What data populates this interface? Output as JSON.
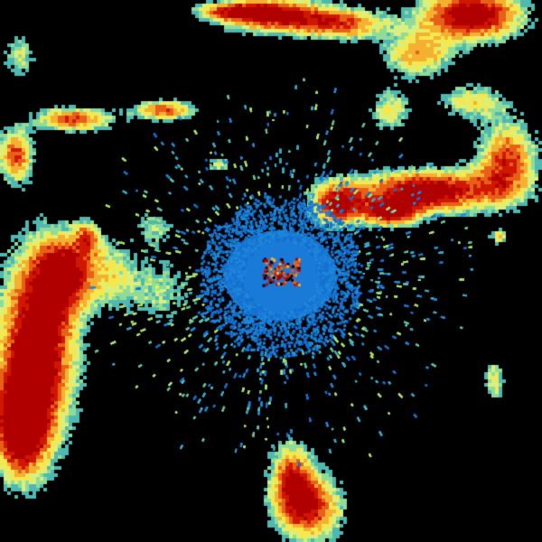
{
  "radar": {
    "background": "#000000",
    "reflectivity_palette": [
      "#4fb8b0",
      "#8fdc9a",
      "#d8f080",
      "#f4e850",
      "#f4b030",
      "#e86018",
      "#d01800",
      "#b00000"
    ],
    "clutter_palette": [
      "#1470d0",
      "#1e88d8",
      "#38a8c8",
      "#60c0a8",
      "#a8e070"
    ],
    "center_core_color": "#1a7ad8"
  }
}
